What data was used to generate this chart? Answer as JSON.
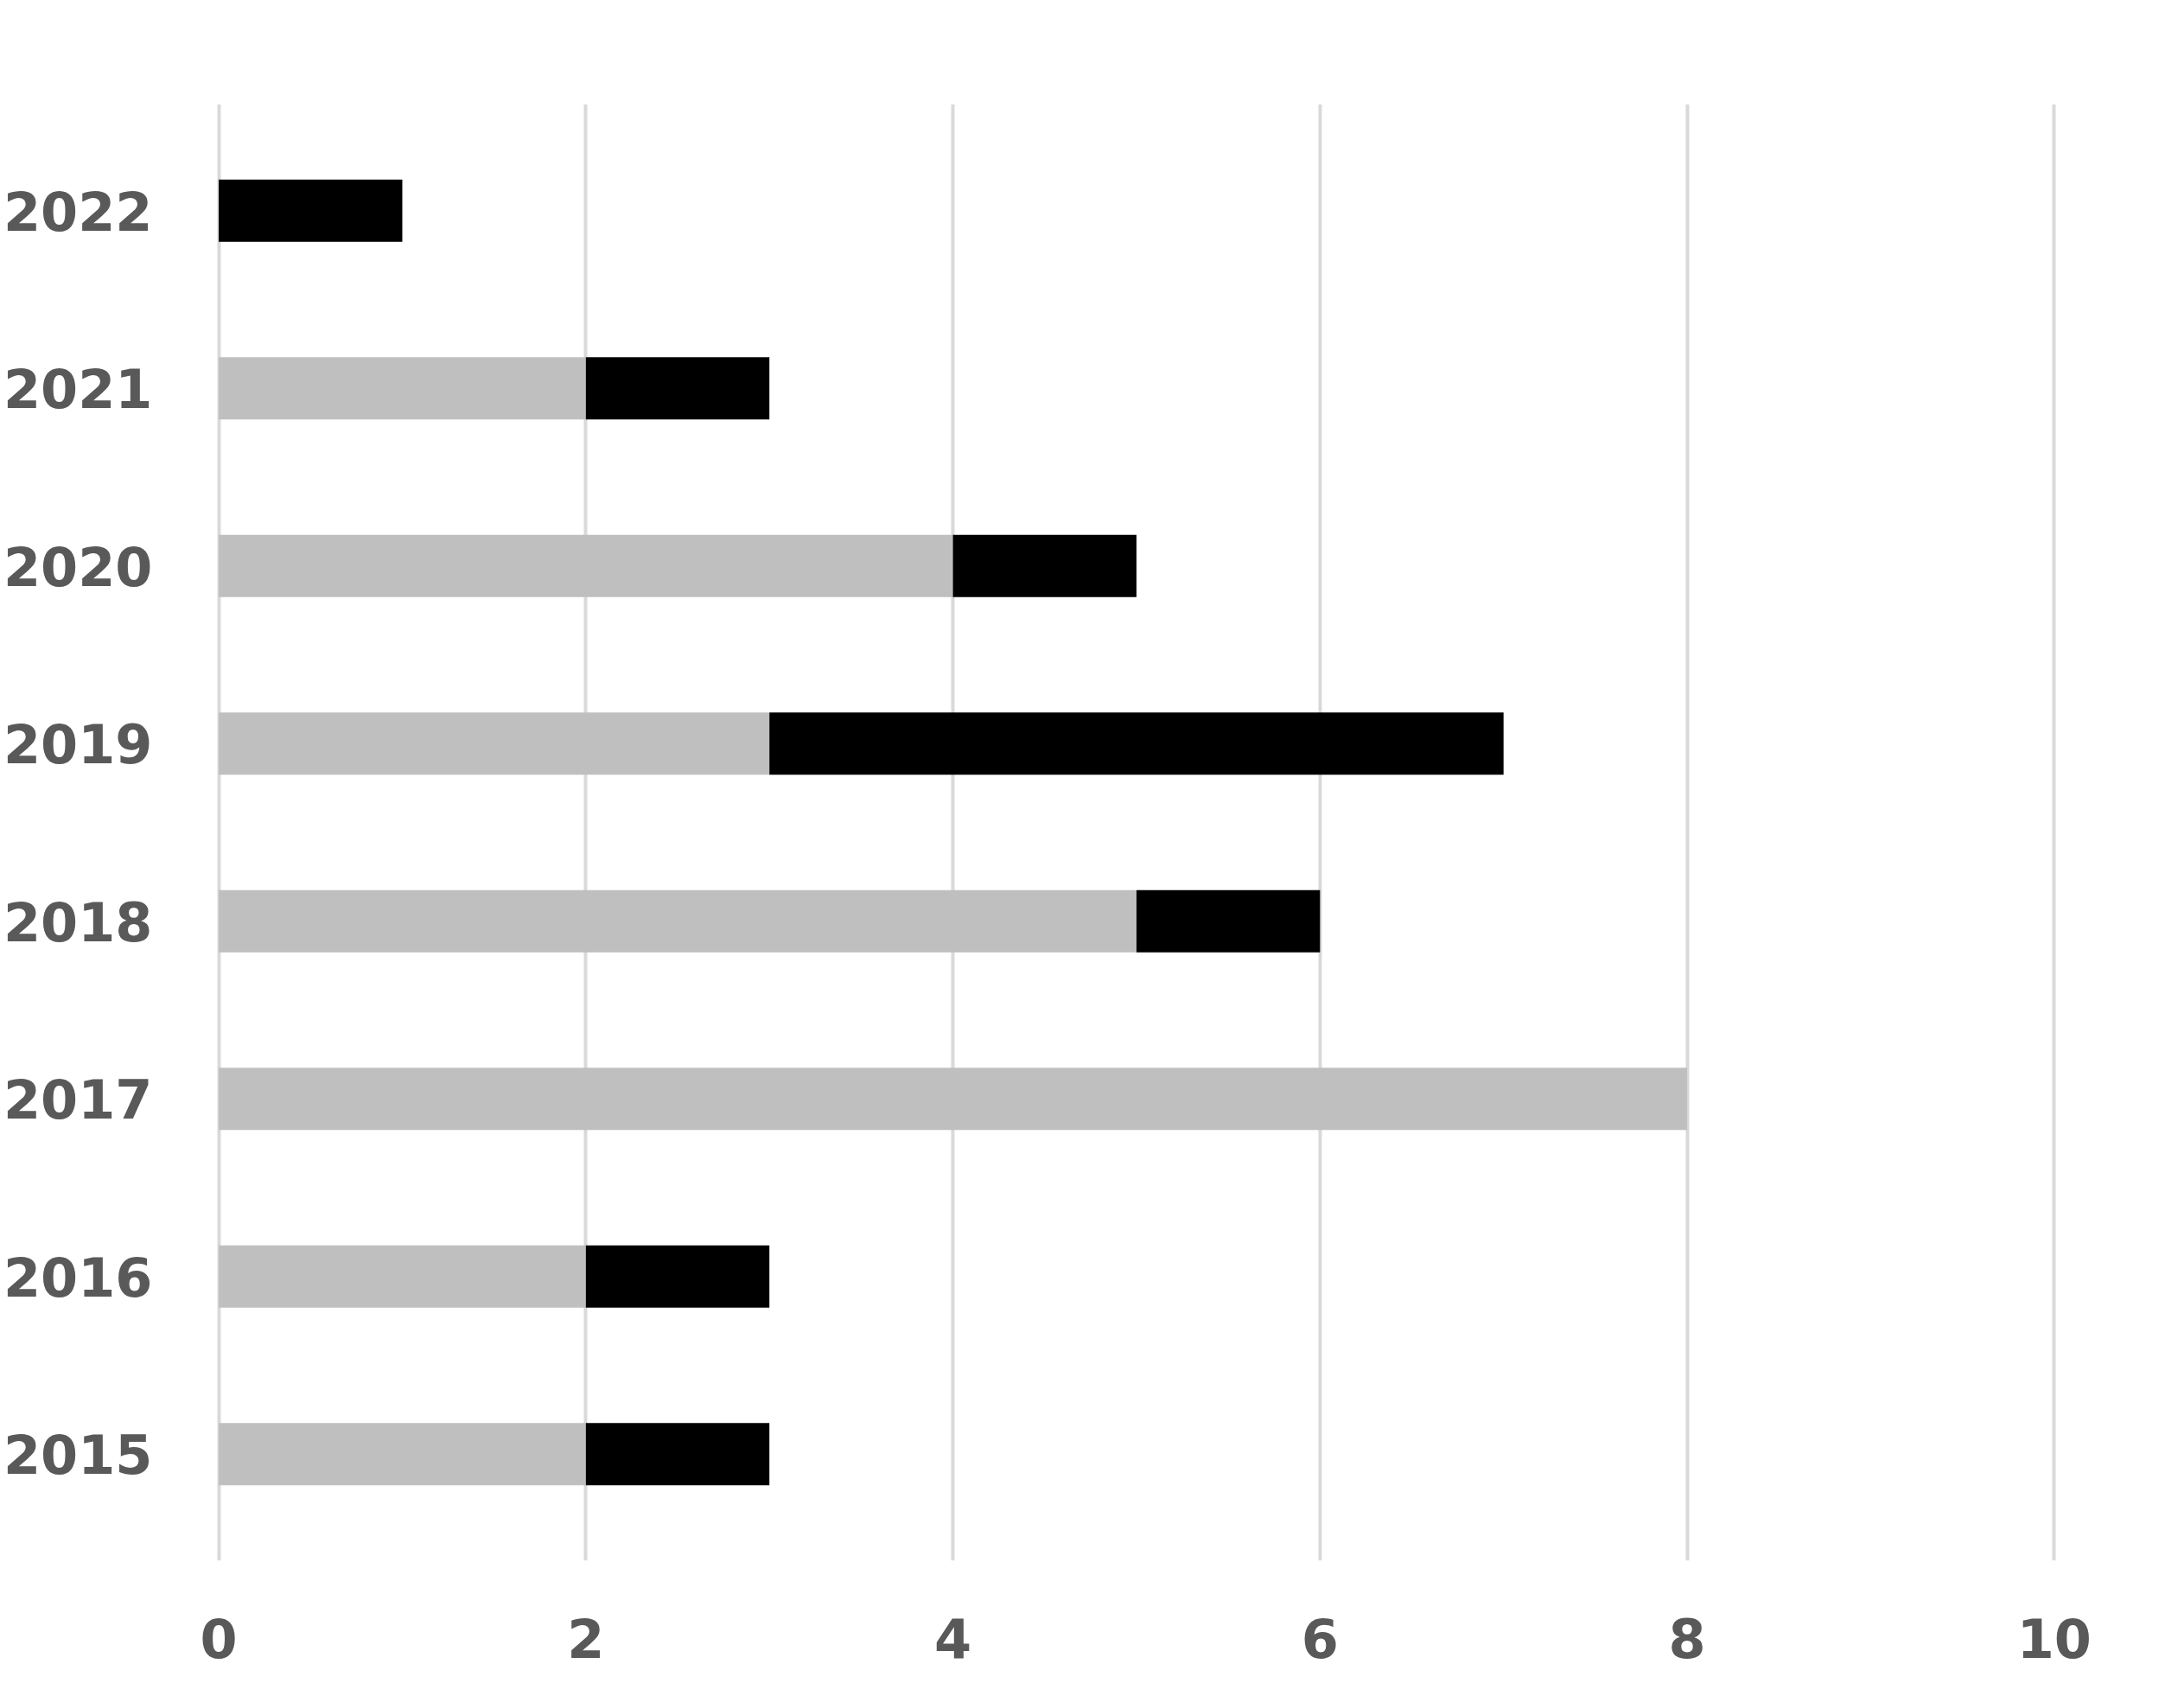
{
  "chart_data": {
    "type": "bar",
    "orientation": "horizontal",
    "stacked": true,
    "categories": [
      "2022",
      "2021",
      "2020",
      "2019",
      "2018",
      "2017",
      "2016",
      "2015"
    ],
    "series": [
      {
        "color": "#bfbfbf",
        "values": [
          0,
          2,
          4,
          3,
          5,
          8,
          2,
          2
        ]
      },
      {
        "color": "#000000",
        "values": [
          1,
          1,
          1,
          4,
          1,
          0,
          1,
          1
        ]
      }
    ],
    "xlim": [
      0,
      10
    ],
    "xticks": [
      0,
      2,
      4,
      6,
      8,
      10
    ],
    "grid": "x"
  }
}
